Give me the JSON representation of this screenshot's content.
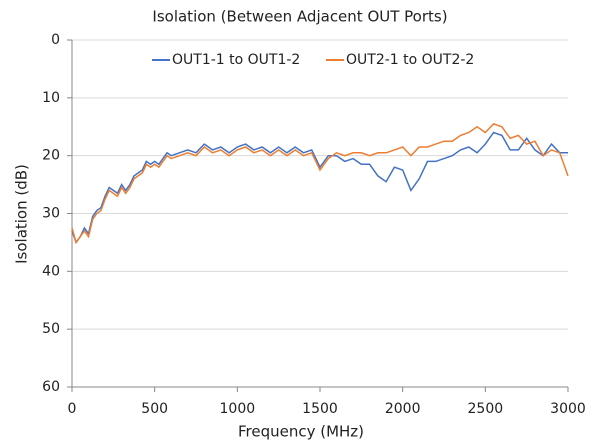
{
  "chart_data": {
    "type": "line",
    "title": "Isolation (Between Adjacent OUT Ports)",
    "x_label": "Frequency (MHz)",
    "y_label": "Isolation (dB)",
    "x": [
      0,
      25,
      50,
      75,
      100,
      125,
      150,
      175,
      200,
      225,
      250,
      275,
      300,
      325,
      350,
      375,
      400,
      425,
      450,
      475,
      500,
      525,
      550,
      575,
      600,
      650,
      700,
      750,
      800,
      850,
      900,
      950,
      1000,
      1050,
      1100,
      1150,
      1200,
      1250,
      1300,
      1350,
      1400,
      1450,
      1500,
      1550,
      1600,
      1650,
      1700,
      1750,
      1800,
      1850,
      1900,
      1950,
      2000,
      2050,
      2100,
      2150,
      2200,
      2250,
      2300,
      2350,
      2400,
      2450,
      2500,
      2550,
      2600,
      2650,
      2700,
      2750,
      2800,
      2850,
      2900,
      2950,
      3000
    ],
    "series": [
      {
        "name": "OUT1-1 to OUT1-2",
        "color": "#4472c4",
        "values": [
          33,
          35,
          34,
          32.5,
          33.5,
          30.5,
          29.5,
          29,
          27,
          25.5,
          26,
          26.5,
          25,
          26,
          25,
          23.5,
          23,
          22.5,
          21,
          21.5,
          21,
          21.5,
          20.5,
          19.5,
          20,
          19.5,
          19,
          19.5,
          18,
          19,
          18.5,
          19.5,
          18.5,
          18,
          19,
          18.5,
          19.5,
          18.5,
          19.5,
          18.5,
          19.5,
          19,
          22,
          20,
          20,
          21,
          20.5,
          21.5,
          21.5,
          23.5,
          24.5,
          22,
          22.5,
          26,
          24,
          21,
          21,
          20.5,
          20,
          19,
          18.5,
          19.5,
          18,
          16,
          16.5,
          19,
          19,
          17,
          19,
          20,
          18,
          19.5,
          19.5
        ]
      },
      {
        "name": "OUT2-1 to OUT2-2",
        "color": "#ed7d31",
        "values": [
          32.5,
          35,
          34,
          33,
          34,
          31,
          30,
          29.5,
          27.5,
          26,
          26.5,
          27,
          25.5,
          26.5,
          25.5,
          24,
          23.5,
          23,
          21.5,
          22,
          21.5,
          22,
          21,
          20,
          20.5,
          20,
          19.5,
          20,
          18.5,
          19.5,
          19,
          20,
          19,
          18.5,
          19.5,
          19,
          20,
          19,
          20,
          19,
          20,
          19.5,
          22.5,
          20.5,
          19.5,
          20,
          19.5,
          19.5,
          20,
          19.5,
          19.5,
          19,
          18.5,
          20,
          18.5,
          18.5,
          18,
          17.5,
          17.5,
          16.5,
          16,
          15,
          16,
          14.5,
          15,
          17,
          16.5,
          18,
          17.5,
          20,
          19,
          19.5,
          23.5
        ]
      }
    ],
    "xlim": [
      0,
      3000
    ],
    "xticks": [
      0,
      500,
      1000,
      1500,
      2000,
      2500,
      3000
    ],
    "ylim": [
      0,
      60
    ],
    "yticks": [
      0,
      10,
      20,
      30,
      40,
      50,
      60
    ],
    "y_inverted": true,
    "grid": true,
    "legend": "top"
  }
}
